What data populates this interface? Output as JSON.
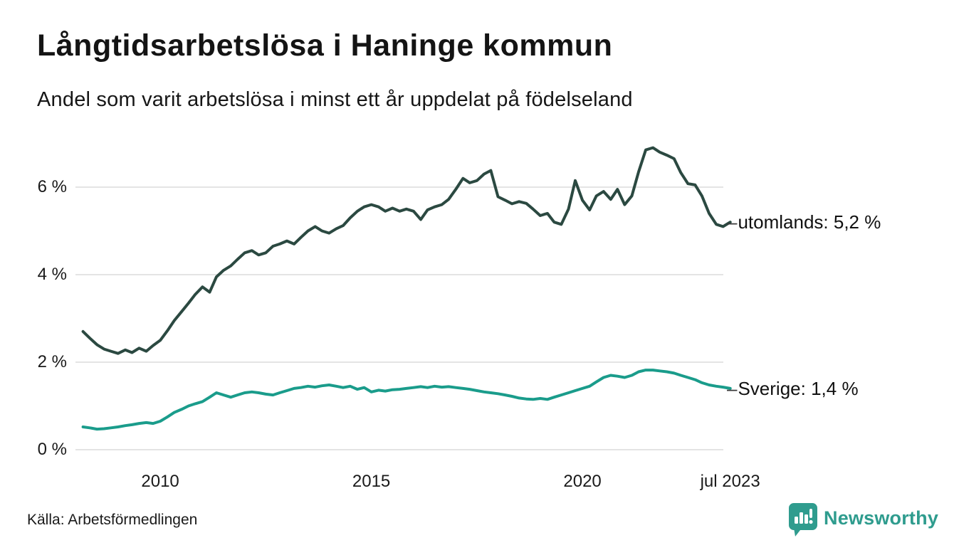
{
  "header": {
    "title_note": "bound from chart_data"
  },
  "footer": {
    "source": "Källa: Arbetsförmedlingen",
    "brand_name": "Newsworthy"
  },
  "colors": {
    "series_utomlands": "#2b4941",
    "series_sverige": "#1a9c8b",
    "gridline": "#e4e4e4",
    "brand_teal": "#2f9c8e",
    "text": "#1a1a1a",
    "background": "#ffffff"
  },
  "chart_data": {
    "type": "line",
    "title": "Långtidsarbetslösa i Haninge kommun",
    "subtitle": "Andel som varit arbetslösa i minst ett år uppdelat på födelseland",
    "xlabel": "",
    "ylabel": "",
    "grid": "horizontal",
    "legend": "end-of-line-labels",
    "ylim": [
      0,
      7.2
    ],
    "xlim": [
      2008.0,
      2023.75
    ],
    "yticks": [
      {
        "value": 0,
        "label": "0 %"
      },
      {
        "value": 2,
        "label": "2 %"
      },
      {
        "value": 4,
        "label": "4 %"
      },
      {
        "value": 6,
        "label": "6 %"
      }
    ],
    "xticks": [
      {
        "value": 2010,
        "label": "2010"
      },
      {
        "value": 2015,
        "label": "2015"
      },
      {
        "value": 2020,
        "label": "2020"
      },
      {
        "value": 2023.5,
        "label": "jul 2023"
      }
    ],
    "x": [
      2008.17,
      2008.33,
      2008.5,
      2008.67,
      2008.83,
      2009,
      2009.17,
      2009.33,
      2009.5,
      2009.67,
      2009.83,
      2010,
      2010.17,
      2010.33,
      2010.5,
      2010.67,
      2010.83,
      2011,
      2011.17,
      2011.33,
      2011.5,
      2011.67,
      2011.83,
      2012,
      2012.17,
      2012.33,
      2012.5,
      2012.67,
      2012.83,
      2013,
      2013.17,
      2013.33,
      2013.5,
      2013.67,
      2013.83,
      2014,
      2014.17,
      2014.33,
      2014.5,
      2014.67,
      2014.83,
      2015,
      2015.17,
      2015.33,
      2015.5,
      2015.67,
      2015.83,
      2016,
      2016.17,
      2016.33,
      2016.5,
      2016.67,
      2016.83,
      2017,
      2017.17,
      2017.33,
      2017.5,
      2017.67,
      2017.83,
      2018,
      2018.17,
      2018.33,
      2018.5,
      2018.67,
      2018.83,
      2019,
      2019.17,
      2019.33,
      2019.5,
      2019.67,
      2019.83,
      2020,
      2020.17,
      2020.33,
      2020.5,
      2020.67,
      2020.83,
      2021,
      2021.17,
      2021.33,
      2021.5,
      2021.67,
      2021.83,
      2022,
      2022.17,
      2022.33,
      2022.5,
      2022.67,
      2022.83,
      2023,
      2023.17,
      2023.33,
      2023.5
    ],
    "series": [
      {
        "name": "utomlands",
        "leader": "–",
        "end_label": "utomlands: 5,2 %",
        "current_value": "5,2 %",
        "color": "#2b4941",
        "values": [
          2.7,
          2.55,
          2.4,
          2.3,
          2.25,
          2.2,
          2.28,
          2.22,
          2.32,
          2.25,
          2.38,
          2.5,
          2.72,
          2.95,
          3.15,
          3.35,
          3.55,
          3.72,
          3.6,
          3.95,
          4.1,
          4.2,
          4.35,
          4.5,
          4.55,
          4.45,
          4.5,
          4.65,
          4.7,
          4.77,
          4.7,
          4.85,
          5.0,
          5.1,
          5.0,
          4.95,
          5.05,
          5.12,
          5.3,
          5.45,
          5.55,
          5.6,
          5.55,
          5.45,
          5.52,
          5.45,
          5.5,
          5.45,
          5.26,
          5.48,
          5.55,
          5.6,
          5.72,
          5.95,
          6.2,
          6.1,
          6.15,
          6.3,
          6.38,
          5.78,
          5.7,
          5.62,
          5.67,
          5.63,
          5.5,
          5.35,
          5.4,
          5.2,
          5.15,
          5.5,
          6.15,
          5.7,
          5.48,
          5.8,
          5.9,
          5.72,
          5.95,
          5.6,
          5.8,
          6.35,
          6.85,
          6.9,
          6.8,
          6.73,
          6.65,
          6.33,
          6.08,
          6.05,
          5.8,
          5.4,
          5.15,
          5.1,
          5.2
        ]
      },
      {
        "name": "Sverige",
        "leader": "–",
        "end_label": "Sverige: 1,4 %",
        "current_value": "1,4 %",
        "color": "#1a9c8b",
        "values": [
          0.52,
          0.5,
          0.47,
          0.48,
          0.5,
          0.52,
          0.55,
          0.57,
          0.6,
          0.62,
          0.6,
          0.65,
          0.75,
          0.85,
          0.92,
          1.0,
          1.05,
          1.1,
          1.2,
          1.3,
          1.25,
          1.2,
          1.25,
          1.3,
          1.32,
          1.3,
          1.27,
          1.25,
          1.3,
          1.35,
          1.4,
          1.42,
          1.45,
          1.43,
          1.46,
          1.48,
          1.45,
          1.42,
          1.45,
          1.38,
          1.42,
          1.32,
          1.36,
          1.34,
          1.37,
          1.38,
          1.4,
          1.42,
          1.44,
          1.42,
          1.45,
          1.43,
          1.44,
          1.42,
          1.4,
          1.38,
          1.35,
          1.32,
          1.3,
          1.28,
          1.25,
          1.22,
          1.18,
          1.16,
          1.15,
          1.17,
          1.15,
          1.2,
          1.25,
          1.3,
          1.35,
          1.4,
          1.45,
          1.55,
          1.65,
          1.7,
          1.68,
          1.65,
          1.7,
          1.78,
          1.82,
          1.82,
          1.8,
          1.78,
          1.75,
          1.7,
          1.65,
          1.6,
          1.53,
          1.48,
          1.45,
          1.43,
          1.4
        ]
      }
    ]
  }
}
